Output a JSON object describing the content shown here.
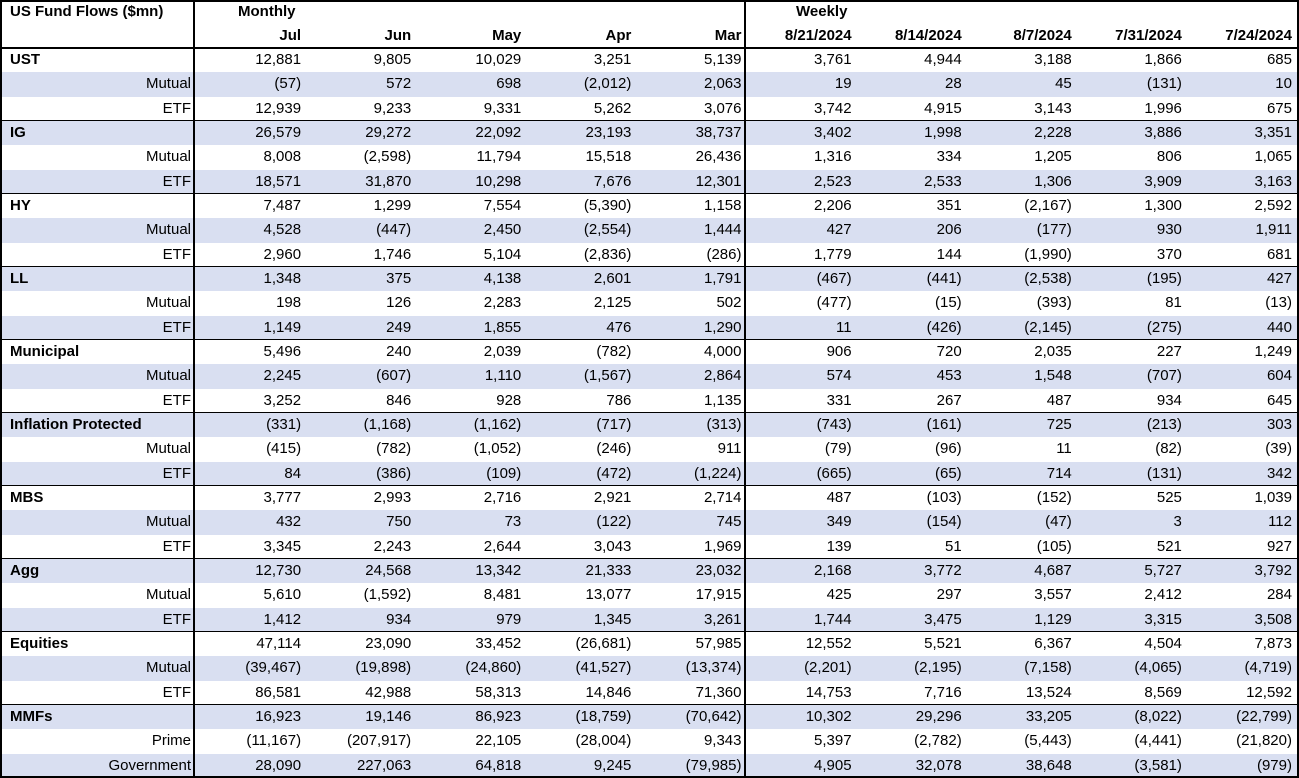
{
  "header": {
    "title": "US Fund Flows ($mn)",
    "monthly": "Monthly",
    "weekly": "Weekly",
    "columns": [
      "Jul",
      "Jun",
      "May",
      "Apr",
      "Mar",
      "8/21/2024",
      "8/14/2024",
      "8/7/2024",
      "7/31/2024",
      "7/24/2024"
    ]
  },
  "groups": [
    {
      "name": "UST",
      "total": [
        "12,881",
        "9,805",
        "10,029",
        "3,251",
        "5,139",
        "3,761",
        "4,944",
        "3,188",
        "1,866",
        "685"
      ],
      "rows": [
        {
          "label": "Mutual",
          "values": [
            "(57)",
            "572",
            "698",
            "(2,012)",
            "2,063",
            "19",
            "28",
            "45",
            "(131)",
            "10"
          ]
        },
        {
          "label": "ETF",
          "values": [
            "12,939",
            "9,233",
            "9,331",
            "5,262",
            "3,076",
            "3,742",
            "4,915",
            "3,143",
            "1,996",
            "675"
          ]
        }
      ]
    },
    {
      "name": "IG",
      "total": [
        "26,579",
        "29,272",
        "22,092",
        "23,193",
        "38,737",
        "3,402",
        "1,998",
        "2,228",
        "3,886",
        "3,351"
      ],
      "rows": [
        {
          "label": "Mutual",
          "values": [
            "8,008",
            "(2,598)",
            "11,794",
            "15,518",
            "26,436",
            "1,316",
            "334",
            "1,205",
            "806",
            "1,065"
          ]
        },
        {
          "label": "ETF",
          "values": [
            "18,571",
            "31,870",
            "10,298",
            "7,676",
            "12,301",
            "2,523",
            "2,533",
            "1,306",
            "3,909",
            "3,163"
          ]
        }
      ]
    },
    {
      "name": "HY",
      "total": [
        "7,487",
        "1,299",
        "7,554",
        "(5,390)",
        "1,158",
        "2,206",
        "351",
        "(2,167)",
        "1,300",
        "2,592"
      ],
      "rows": [
        {
          "label": "Mutual",
          "values": [
            "4,528",
            "(447)",
            "2,450",
            "(2,554)",
            "1,444",
            "427",
            "206",
            "(177)",
            "930",
            "1,911"
          ]
        },
        {
          "label": "ETF",
          "values": [
            "2,960",
            "1,746",
            "5,104",
            "(2,836)",
            "(286)",
            "1,779",
            "144",
            "(1,990)",
            "370",
            "681"
          ]
        }
      ]
    },
    {
      "name": "LL",
      "total": [
        "1,348",
        "375",
        "4,138",
        "2,601",
        "1,791",
        "(467)",
        "(441)",
        "(2,538)",
        "(195)",
        "427"
      ],
      "rows": [
        {
          "label": "Mutual",
          "values": [
            "198",
            "126",
            "2,283",
            "2,125",
            "502",
            "(477)",
            "(15)",
            "(393)",
            "81",
            "(13)"
          ]
        },
        {
          "label": "ETF",
          "values": [
            "1,149",
            "249",
            "1,855",
            "476",
            "1,290",
            "11",
            "(426)",
            "(2,145)",
            "(275)",
            "440"
          ]
        }
      ]
    },
    {
      "name": "Municipal",
      "total": [
        "5,496",
        "240",
        "2,039",
        "(782)",
        "4,000",
        "906",
        "720",
        "2,035",
        "227",
        "1,249"
      ],
      "rows": [
        {
          "label": "Mutual",
          "values": [
            "2,245",
            "(607)",
            "1,110",
            "(1,567)",
            "2,864",
            "574",
            "453",
            "1,548",
            "(707)",
            "604"
          ]
        },
        {
          "label": "ETF",
          "values": [
            "3,252",
            "846",
            "928",
            "786",
            "1,135",
            "331",
            "267",
            "487",
            "934",
            "645"
          ]
        }
      ]
    },
    {
      "name": "Inflation Protected",
      "total": [
        "(331)",
        "(1,168)",
        "(1,162)",
        "(717)",
        "(313)",
        "(743)",
        "(161)",
        "725",
        "(213)",
        "303"
      ],
      "rows": [
        {
          "label": "Mutual",
          "values": [
            "(415)",
            "(782)",
            "(1,052)",
            "(246)",
            "911",
            "(79)",
            "(96)",
            "11",
            "(82)",
            "(39)"
          ]
        },
        {
          "label": "ETF",
          "values": [
            "84",
            "(386)",
            "(109)",
            "(472)",
            "(1,224)",
            "(665)",
            "(65)",
            "714",
            "(131)",
            "342"
          ]
        }
      ]
    },
    {
      "name": "MBS",
      "total": [
        "3,777",
        "2,993",
        "2,716",
        "2,921",
        "2,714",
        "487",
        "(103)",
        "(152)",
        "525",
        "1,039"
      ],
      "rows": [
        {
          "label": "Mutual",
          "values": [
            "432",
            "750",
            "73",
            "(122)",
            "745",
            "349",
            "(154)",
            "(47)",
            "3",
            "112"
          ]
        },
        {
          "label": "ETF",
          "values": [
            "3,345",
            "2,243",
            "2,644",
            "3,043",
            "1,969",
            "139",
            "51",
            "(105)",
            "521",
            "927"
          ]
        }
      ]
    },
    {
      "name": "Agg",
      "total": [
        "12,730",
        "24,568",
        "13,342",
        "21,333",
        "23,032",
        "2,168",
        "3,772",
        "4,687",
        "5,727",
        "3,792"
      ],
      "rows": [
        {
          "label": "Mutual",
          "values": [
            "5,610",
            "(1,592)",
            "8,481",
            "13,077",
            "17,915",
            "425",
            "297",
            "3,557",
            "2,412",
            "284"
          ]
        },
        {
          "label": "ETF",
          "values": [
            "1,412",
            "934",
            "979",
            "1,345",
            "3,261",
            "1,744",
            "3,475",
            "1,129",
            "3,315",
            "3,508"
          ]
        }
      ]
    },
    {
      "name": "Equities",
      "total": [
        "47,114",
        "23,090",
        "33,452",
        "(26,681)",
        "57,985",
        "12,552",
        "5,521",
        "6,367",
        "4,504",
        "7,873"
      ],
      "rows": [
        {
          "label": "Mutual",
          "values": [
            "(39,467)",
            "(19,898)",
            "(24,860)",
            "(41,527)",
            "(13,374)",
            "(2,201)",
            "(2,195)",
            "(7,158)",
            "(4,065)",
            "(4,719)"
          ]
        },
        {
          "label": "ETF",
          "values": [
            "86,581",
            "42,988",
            "58,313",
            "14,846",
            "71,360",
            "14,753",
            "7,716",
            "13,524",
            "8,569",
            "12,592"
          ]
        }
      ]
    },
    {
      "name": "MMFs",
      "total": [
        "16,923",
        "19,146",
        "86,923",
        "(18,759)",
        "(70,642)",
        "10,302",
        "29,296",
        "33,205",
        "(8,022)",
        "(22,799)"
      ],
      "rows": [
        {
          "label": "Prime",
          "values": [
            "(11,167)",
            "(207,917)",
            "22,105",
            "(28,004)",
            "9,343",
            "5,397",
            "(2,782)",
            "(5,443)",
            "(4,441)",
            "(21,820)"
          ]
        },
        {
          "label": "Government",
          "values": [
            "28,090",
            "227,063",
            "64,818",
            "9,245",
            "(79,985)",
            "4,905",
            "32,078",
            "38,648",
            "(3,581)",
            "(979)"
          ]
        }
      ]
    }
  ]
}
